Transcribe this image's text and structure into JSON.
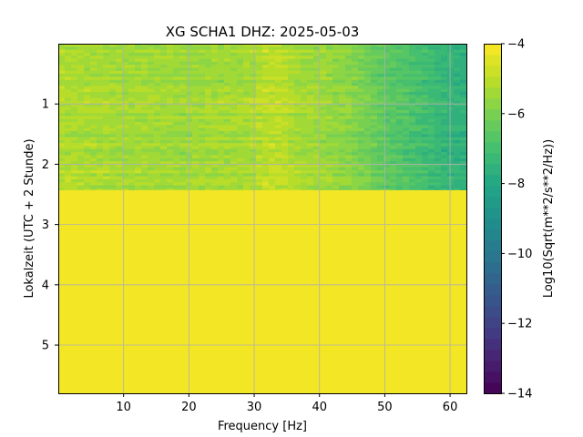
{
  "chart_data": {
    "type": "heatmap",
    "title": "XG SCHA1  DHZ: 2025-05-03",
    "xlabel": "Frequency [Hz]",
    "ylabel": "Lokalzeit (UTC + 2 Stunde)",
    "colorbar_label": "Log10(Sqrt(m**2/s**2/Hz))",
    "colormap": "viridis",
    "colormap_levels": 32,
    "x_range": [
      0.0,
      62.5
    ],
    "y_range": [
      0.0,
      5.8
    ],
    "y_inverted": true,
    "c_range": [
      -14,
      -4
    ],
    "x_ticks": [
      10,
      20,
      30,
      40,
      50,
      60
    ],
    "y_ticks": [
      1,
      2,
      3,
      4,
      5
    ],
    "c_ticks": [
      -4,
      -6,
      -8,
      -10,
      -12,
      -14
    ],
    "grid": true,
    "grid_color": "#b0b0b0",
    "data_end_time": 2.43,
    "fill_value_after_data_end": -4.0,
    "frequency_profile_hz": [
      0,
      5,
      10,
      15,
      20,
      25,
      30,
      32,
      34,
      36,
      40,
      45,
      50,
      55,
      60,
      62.5
    ],
    "frequency_profile_log10": [
      -5.2,
      -5.3,
      -5.4,
      -5.4,
      -5.5,
      -5.4,
      -5.3,
      -5.0,
      -5.0,
      -5.3,
      -5.5,
      -5.8,
      -6.5,
      -7.0,
      -7.5,
      -7.6
    ],
    "notes_visible": "spectrum covers 0–2.43 h; rest saturated at -4"
  }
}
